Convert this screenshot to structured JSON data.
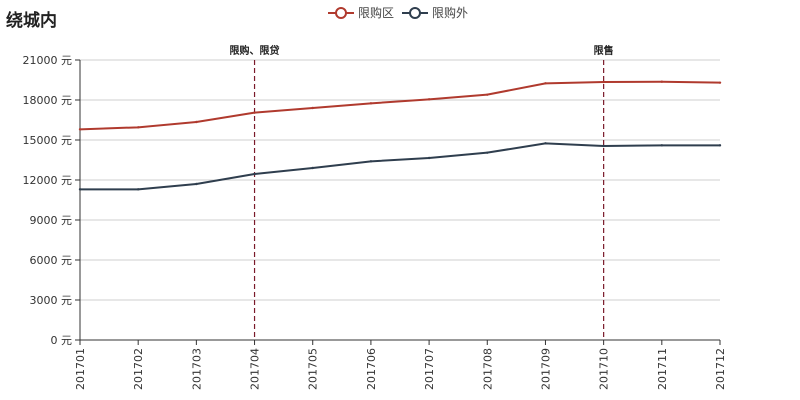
{
  "chart_data": {
    "type": "line",
    "title": "绕城内",
    "categories": [
      "201701",
      "201702",
      "201703",
      "201704",
      "201705",
      "201706",
      "201707",
      "201708",
      "201709",
      "201710",
      "201711",
      "201712"
    ],
    "series": [
      {
        "name": "限购区",
        "color": "#b03a2e",
        "values": [
          15800,
          15950,
          16350,
          17050,
          17400,
          17750,
          18050,
          18400,
          19250,
          19350,
          19370,
          19300
        ]
      },
      {
        "name": "限购外",
        "color": "#2f3e4e",
        "values": [
          11300,
          11300,
          11700,
          12450,
          12900,
          13400,
          13650,
          14050,
          14750,
          14550,
          14600,
          14600
        ]
      }
    ],
    "ylim": [
      0,
      21000
    ],
    "yticks": [
      "0 元",
      "3000 元",
      "6000 元",
      "9000 元",
      "12000 元",
      "15000 元",
      "18000 元",
      "21000 元"
    ],
    "ytick_values": [
      0,
      3000,
      6000,
      9000,
      12000,
      15000,
      18000,
      21000
    ],
    "annotations": [
      {
        "category": "201704",
        "label": "限购、限贷"
      },
      {
        "category": "201710",
        "label": "限售"
      }
    ],
    "annotation_color": "#7a1a2a",
    "legend_position": "top-center",
    "grid": true
  }
}
